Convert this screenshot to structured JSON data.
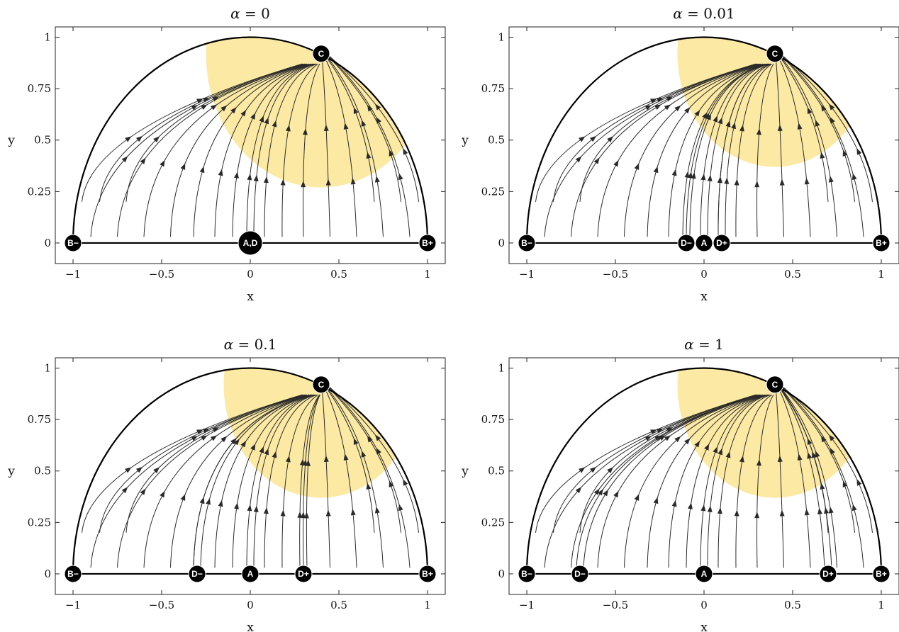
{
  "colors": {
    "basin": "#fbe9a4",
    "stream": "#2a2a2a",
    "fixed_point": "#000000",
    "boundary": "#000000"
  },
  "chart_data": [
    {
      "type": "streamplot",
      "title_symbol": "α",
      "title_value": "= 0",
      "xlabel": "x",
      "ylabel": "y",
      "xlim": [
        -1.1,
        1.1
      ],
      "ylim": [
        -0.1,
        1.05
      ],
      "xticks": [
        -1,
        -0.5,
        0,
        0.5,
        1
      ],
      "xtick_labels": [
        "−1",
        "−0.5",
        "0",
        "0.5",
        "1"
      ],
      "yticks": [
        0,
        0.25,
        0.5,
        0.75,
        1
      ],
      "ytick_labels": [
        "0",
        "0.25",
        "0.5",
        "0.75",
        "1"
      ],
      "basin": {
        "center": [
          0.4,
          0.92
        ],
        "radius": 0.65
      },
      "fixed_points": [
        {
          "label": "B−",
          "x": -1,
          "y": 0
        },
        {
          "label": "A,D",
          "x": 0,
          "y": 0,
          "large": true
        },
        {
          "label": "B+",
          "x": 1,
          "y": 0
        },
        {
          "label": "C",
          "x": 0.4,
          "y": 0.92
        }
      ]
    },
    {
      "type": "streamplot",
      "title_symbol": "α",
      "title_value": "= 0.01",
      "xlabel": "x",
      "ylabel": "y",
      "xlim": [
        -1.1,
        1.1
      ],
      "ylim": [
        -0.1,
        1.05
      ],
      "xticks": [
        -1,
        -0.5,
        0,
        0.5,
        1
      ],
      "xtick_labels": [
        "−1",
        "−0.5",
        "0",
        "0.5",
        "1"
      ],
      "yticks": [
        0,
        0.25,
        0.5,
        0.75,
        1
      ],
      "ytick_labels": [
        "0",
        "0.25",
        "0.5",
        "0.75",
        "1"
      ],
      "basin": {
        "center": [
          0.4,
          0.92
        ],
        "radius": 0.55
      },
      "fixed_points": [
        {
          "label": "B−",
          "x": -1,
          "y": 0
        },
        {
          "label": "D−",
          "x": -0.1,
          "y": 0
        },
        {
          "label": "A",
          "x": 0,
          "y": 0
        },
        {
          "label": "D+",
          "x": 0.1,
          "y": 0
        },
        {
          "label": "B+",
          "x": 1,
          "y": 0
        },
        {
          "label": "C",
          "x": 0.4,
          "y": 0.92
        }
      ]
    },
    {
      "type": "streamplot",
      "title_symbol": "α",
      "title_value": "= 0.1",
      "xlabel": "x",
      "ylabel": "y",
      "xlim": [
        -1.1,
        1.1
      ],
      "ylim": [
        -0.1,
        1.05
      ],
      "xticks": [
        -1,
        -0.5,
        0,
        0.5,
        1
      ],
      "xtick_labels": [
        "−1",
        "−0.5",
        "0",
        "0.5",
        "1"
      ],
      "yticks": [
        0,
        0.25,
        0.5,
        0.75,
        1
      ],
      "ytick_labels": [
        "0",
        "0.25",
        "0.5",
        "0.75",
        "1"
      ],
      "basin": {
        "center": [
          0.4,
          0.92
        ],
        "radius": 0.55
      },
      "fixed_points": [
        {
          "label": "B−",
          "x": -1,
          "y": 0
        },
        {
          "label": "D−",
          "x": -0.3,
          "y": 0
        },
        {
          "label": "A",
          "x": 0,
          "y": 0
        },
        {
          "label": "D+",
          "x": 0.3,
          "y": 0
        },
        {
          "label": "B+",
          "x": 1,
          "y": 0
        },
        {
          "label": "C",
          "x": 0.4,
          "y": 0.92
        }
      ]
    },
    {
      "type": "streamplot",
      "title_symbol": "α",
      "title_value": "= 1",
      "xlabel": "x",
      "ylabel": "y",
      "xlim": [
        -1.1,
        1.1
      ],
      "ylim": [
        -0.1,
        1.05
      ],
      "xticks": [
        -1,
        -0.5,
        0,
        0.5,
        1
      ],
      "xtick_labels": [
        "−1",
        "−0.5",
        "0",
        "0.5",
        "1"
      ],
      "yticks": [
        0,
        0.25,
        0.5,
        0.75,
        1
      ],
      "ytick_labels": [
        "0",
        "0.25",
        "0.5",
        "0.75",
        "1"
      ],
      "basin": {
        "center": [
          0.4,
          0.92
        ],
        "radius": 0.55
      },
      "fixed_points": [
        {
          "label": "B−",
          "x": -1,
          "y": 0
        },
        {
          "label": "D−",
          "x": -0.7,
          "y": 0
        },
        {
          "label": "A",
          "x": 0,
          "y": 0
        },
        {
          "label": "D+",
          "x": 0.7,
          "y": 0
        },
        {
          "label": "B+",
          "x": 1,
          "y": 0
        },
        {
          "label": "C",
          "x": 0.4,
          "y": 0.92
        }
      ]
    }
  ]
}
